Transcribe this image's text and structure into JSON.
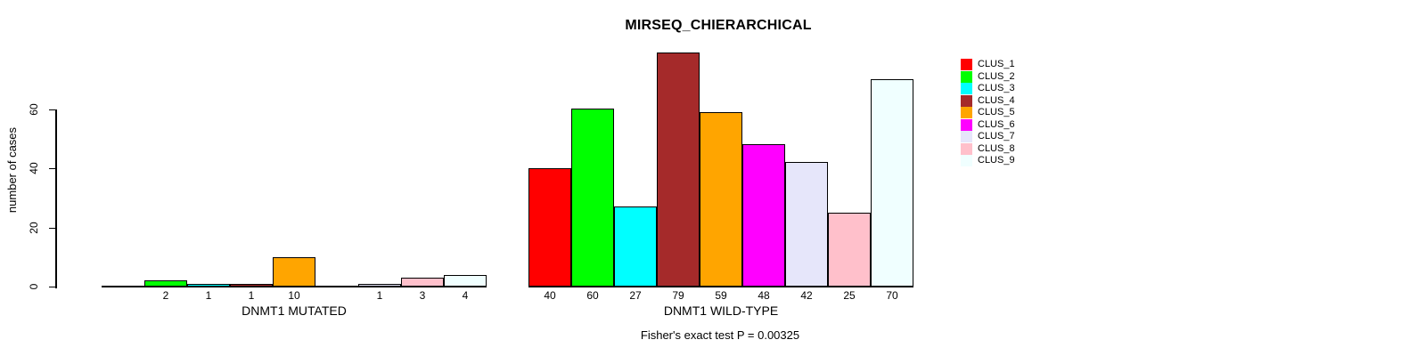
{
  "chart_data": {
    "type": "bar",
    "title": "MIRSEQ_CHIERARCHICAL",
    "ylabel": "number of cases",
    "xlabel": "",
    "yticks": [
      0,
      20,
      40,
      60
    ],
    "ylim": [
      0,
      80
    ],
    "grid": false,
    "legend_position": "top-right",
    "annotation": "Fisher's exact test P = 0.00325",
    "series": [
      {
        "name": "CLUS_1",
        "color": "#FF0000"
      },
      {
        "name": "CLUS_2",
        "color": "#00FF00"
      },
      {
        "name": "CLUS_3",
        "color": "#00FFFF"
      },
      {
        "name": "CLUS_4",
        "color": "#A52A2A"
      },
      {
        "name": "CLUS_5",
        "color": "#FFA500"
      },
      {
        "name": "CLUS_6",
        "color": "#FF00FF"
      },
      {
        "name": "CLUS_7",
        "color": "#E6E6FA"
      },
      {
        "name": "CLUS_8",
        "color": "#FFC0CB"
      },
      {
        "name": "CLUS_9",
        "color": "#F0FFFF"
      }
    ],
    "groups": [
      {
        "xlabel": "DNMT1 MUTATED",
        "values": [
          0,
          2,
          1,
          1,
          10,
          0,
          1,
          3,
          4
        ],
        "bar_labels": [
          "",
          "2",
          "1",
          "1",
          "10",
          "",
          "1",
          "3",
          "4"
        ]
      },
      {
        "xlabel": "DNMT1 WILD-TYPE",
        "values": [
          40,
          60,
          27,
          79,
          59,
          48,
          42,
          25,
          70
        ],
        "bar_labels": [
          "40",
          "60",
          "27",
          "79",
          "59",
          "48",
          "42",
          "25",
          "70"
        ]
      }
    ]
  }
}
